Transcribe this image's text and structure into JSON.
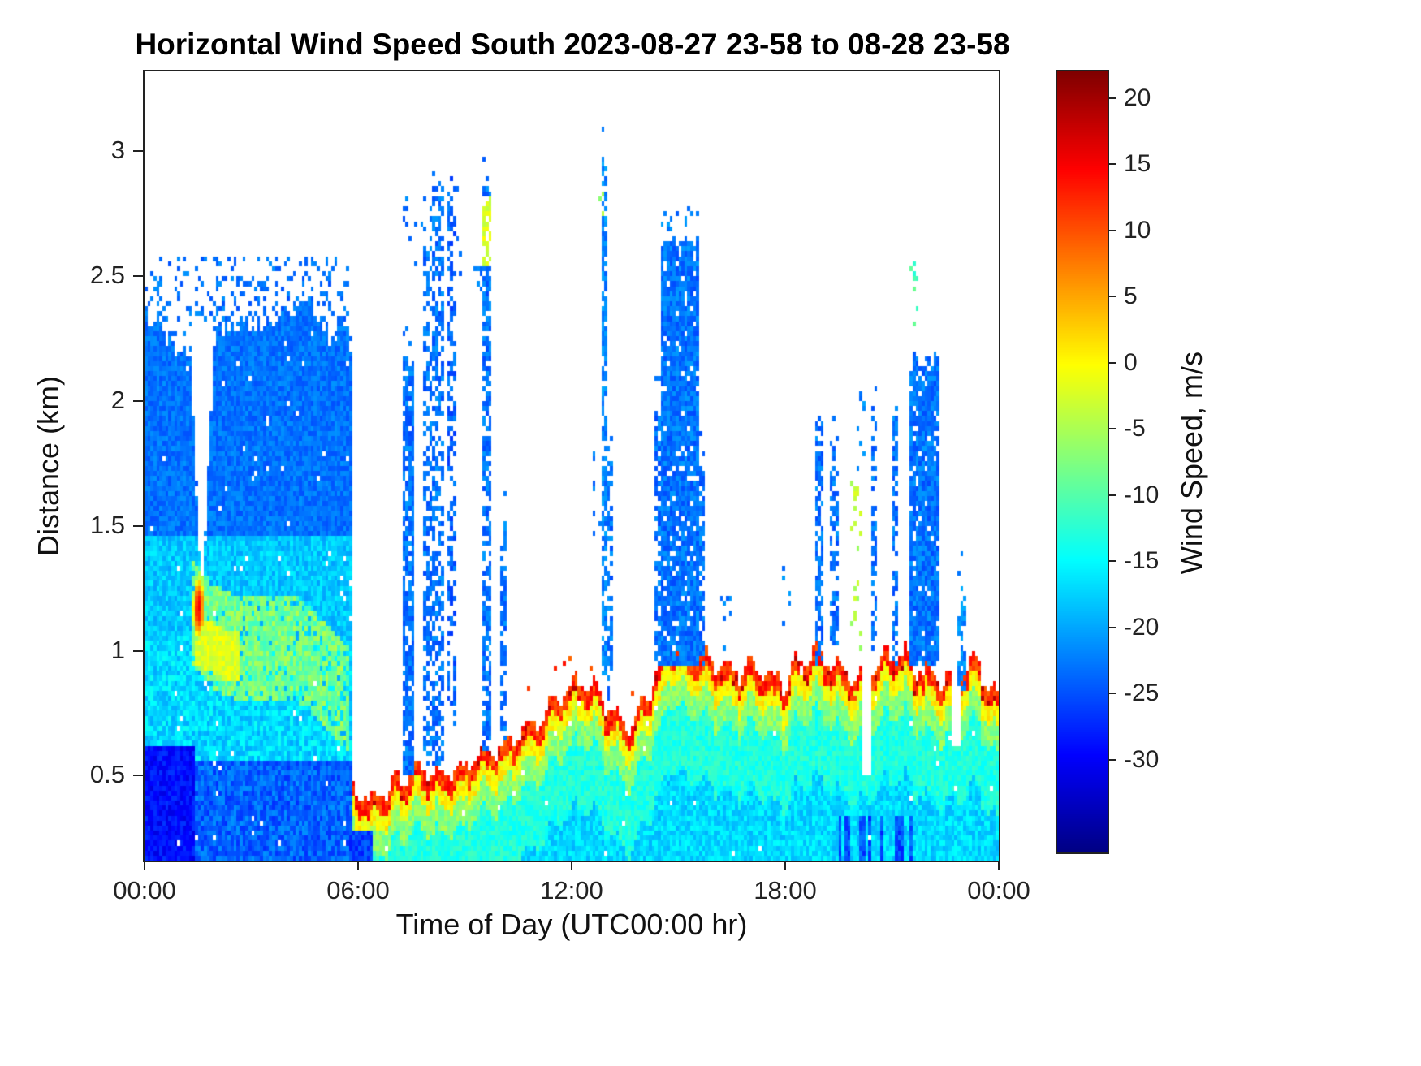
{
  "chart_data": {
    "type": "heatmap",
    "title": "Horizontal Wind Speed South 2023-08-27 23-58 to 08-28 23-58",
    "xlabel": "Time of Day (UTC00:00 hr)",
    "ylabel": "Distance (km)",
    "colorbar_label": "Wind Speed, m/s",
    "x_range_hours": [
      0,
      24
    ],
    "y_range_km": [
      0.16,
      3.32
    ],
    "value_range": [
      -37,
      22
    ],
    "grid_on": false,
    "legend": "colorbar-right",
    "x_ticks": [
      {
        "t": 0,
        "label": "00:00"
      },
      {
        "t": 6,
        "label": "06:00"
      },
      {
        "t": 12,
        "label": "12:00"
      },
      {
        "t": 18,
        "label": "18:00"
      },
      {
        "t": 24,
        "label": "00:00"
      }
    ],
    "y_ticks": [
      {
        "v": 0.5,
        "label": "0.5"
      },
      {
        "v": 1,
        "label": "1"
      },
      {
        "v": 1.5,
        "label": "1.5"
      },
      {
        "v": 2,
        "label": "2"
      },
      {
        "v": 2.5,
        "label": "2.5"
      },
      {
        "v": 3,
        "label": "3"
      }
    ],
    "colorbar_ticks": [
      {
        "v": 20,
        "label": "20"
      },
      {
        "v": 15,
        "label": "15"
      },
      {
        "v": 10,
        "label": "10"
      },
      {
        "v": 5,
        "label": "5"
      },
      {
        "v": 0,
        "label": "0"
      },
      {
        "v": -5,
        "label": "-5"
      },
      {
        "v": -10,
        "label": "-10"
      },
      {
        "v": -15,
        "label": "-15"
      },
      {
        "v": -20,
        "label": "-20"
      },
      {
        "v": -25,
        "label": "-25"
      },
      {
        "v": -30,
        "label": "-30"
      }
    ],
    "colormap": "jet",
    "colormap_stops": [
      [
        0,
        0,
        0,
        131
      ],
      [
        0.125,
        0,
        0,
        255
      ],
      [
        0.375,
        0,
        255,
        255
      ],
      [
        0.625,
        255,
        255,
        0
      ],
      [
        0.875,
        255,
        0,
        0
      ],
      [
        1,
        128,
        0,
        0
      ]
    ],
    "grid": {
      "nx": 288,
      "ny": 158,
      "seed": 42
    },
    "features": {
      "mass": {
        "t": [
          0,
          5.85
        ],
        "base": 0.16,
        "top_pts": [
          [
            0,
            2.38
          ],
          [
            0.4,
            2.3
          ],
          [
            0.9,
            2.22
          ],
          [
            1.3,
            2.2
          ],
          [
            1.7,
            2.28
          ],
          [
            2.1,
            2.3
          ],
          [
            2.5,
            2.28
          ],
          [
            2.9,
            2.32
          ],
          [
            3.3,
            2.3
          ],
          [
            3.7,
            2.36
          ],
          [
            4.1,
            2.32
          ],
          [
            4.5,
            2.4
          ],
          [
            4.9,
            2.34
          ],
          [
            5.3,
            2.28
          ],
          [
            5.6,
            2.3
          ],
          [
            5.85,
            2.2
          ]
        ],
        "top_noise": 0.1,
        "layers": [
          {
            "y_max": 0.55,
            "v": -24,
            "jit": 6
          },
          {
            "y_max": 1.05,
            "v": -17,
            "jit": 6
          },
          {
            "y_max": 1.45,
            "v": -18,
            "jit": 5
          },
          {
            "y_max": 4.0,
            "v": -23,
            "jit": 4
          }
        ],
        "dark_bl": {
          "t": [
            0,
            1.35
          ],
          "y_max": 0.6,
          "v": -29,
          "jit": 5
        },
        "tongue": {
          "t": [
            1.35,
            5.7
          ],
          "c_pts": [
            [
              1.35,
              1.15
            ],
            [
              2.0,
              1.05
            ],
            [
              2.7,
              1.0
            ],
            [
              3.5,
              1.02
            ],
            [
              4.3,
              1.0
            ],
            [
              5.0,
              0.92
            ],
            [
              5.7,
              0.8
            ]
          ],
          "halfw": 0.2,
          "v": -8,
          "jit": 7
        },
        "tongue_core": {
          "t": [
            1.45,
            2.6
          ],
          "c_pts": [
            [
              1.45,
              1.05
            ],
            [
              2.0,
              1.0
            ],
            [
              2.6,
              0.97
            ]
          ],
          "halfw": 0.09,
          "v": -2,
          "jit": 4
        }
      },
      "hole": {
        "t_center": 1.62,
        "y_base": 1.3,
        "halfw_base": 0.05,
        "halfw_slope": 0.3
      },
      "warm_spot": {
        "t": 1.52,
        "y": 1.17,
        "rt": 0.17,
        "ry": 0.13,
        "v_center": 15,
        "v_edge": -6
      },
      "gap": {
        "t": [
          5.85,
          6.45
        ],
        "y_above": 0.46
      },
      "surface": {
        "t": [
          5.85,
          24.05
        ],
        "base": 0.16,
        "top_pts": [
          [
            5.85,
            0.46
          ],
          [
            6.3,
            0.4
          ],
          [
            6.8,
            0.45
          ],
          [
            7.4,
            0.5
          ],
          [
            8.0,
            0.52
          ],
          [
            8.6,
            0.5
          ],
          [
            9.2,
            0.56
          ],
          [
            9.8,
            0.6
          ],
          [
            10.4,
            0.66
          ],
          [
            11.0,
            0.72
          ],
          [
            11.6,
            0.8
          ],
          [
            12.1,
            0.88
          ],
          [
            12.6,
            0.86
          ],
          [
            13.1,
            0.76
          ],
          [
            13.5,
            0.7
          ],
          [
            14.0,
            0.78
          ],
          [
            14.5,
            0.95
          ],
          [
            14.9,
            1.04
          ],
          [
            15.4,
            0.98
          ],
          [
            15.9,
            0.96
          ],
          [
            16.4,
            0.92
          ],
          [
            16.9,
            0.94
          ],
          [
            17.4,
            0.9
          ],
          [
            17.9,
            0.88
          ],
          [
            18.4,
            0.94
          ],
          [
            18.9,
            1.0
          ],
          [
            19.4,
            0.94
          ],
          [
            19.9,
            0.9
          ],
          [
            20.4,
            0.92
          ],
          [
            20.9,
            1.0
          ],
          [
            21.4,
            0.97
          ],
          [
            21.9,
            0.92
          ],
          [
            22.4,
            0.88
          ],
          [
            22.9,
            0.9
          ],
          [
            23.3,
            0.97
          ],
          [
            23.7,
            0.88
          ],
          [
            24.05,
            0.78
          ]
        ],
        "wobble_amp": 0.04,
        "wobble_freq": 1.6,
        "jitter": 0.05,
        "cap": {
          "depth": 0.07,
          "v": 12,
          "jit": 7
        },
        "bands": [
          {
            "depth": 0.14,
            "v": 0,
            "jit": 5
          },
          {
            "depth": 0.24,
            "v": -7,
            "jit": 5
          },
          {
            "depth": 0.5,
            "v": -13,
            "jit": 4
          }
        ],
        "deep_v": -17,
        "deep_jit": 5,
        "spray": {
          "t": [
            9.8,
            14.6
          ],
          "p": 0.12,
          "dy": [
            0.02,
            0.14
          ],
          "v": 11,
          "jit": 6
        },
        "dark_cols": {
          "t": [
            19.4,
            22.0
          ],
          "y_max": 0.34,
          "p": 0.3,
          "v": -25,
          "jit": 6
        }
      },
      "dark_patch": {
        "t": [
          5.8,
          6.4
        ],
        "y_max": 0.26,
        "v": -26,
        "jit": 5
      },
      "slots": [
        {
          "t": [
            20.2,
            20.4
          ],
          "y_above": 0.5
        },
        {
          "t": [
            22.7,
            22.85
          ],
          "y_above": 0.62
        }
      ],
      "columns": [
        {
          "t": [
            7.25,
            7.55
          ],
          "y": [
            0.5,
            2.15
          ],
          "v": -23,
          "broken": 0.15
        },
        {
          "t": [
            7.9,
            8.05
          ],
          "y": [
            0.55,
            2.65
          ],
          "v": -23,
          "broken": 0.45
        },
        {
          "t": [
            8.15,
            8.35
          ],
          "y": [
            0.55,
            2.85
          ],
          "v": -23,
          "broken": 0.5
        },
        {
          "t": [
            8.55,
            8.72
          ],
          "y": [
            0.7,
            2.88
          ],
          "v": -24,
          "broken": 0.55
        },
        {
          "t": [
            9.5,
            9.68
          ],
          "y": [
            0.6,
            2.85
          ],
          "v": -23,
          "broken": 0.35,
          "tip_y": [
            2.55,
            2.82
          ],
          "tip_v": -2
        },
        {
          "t": [
            10.05,
            10.15
          ],
          "y": [
            0.65,
            1.5
          ],
          "v": -23,
          "broken": 0.4
        },
        {
          "t": [
            12.85,
            12.97
          ],
          "y": [
            0.9,
            2.97
          ],
          "v": -22,
          "broken": 0.3
        },
        {
          "t": [
            13.05,
            13.12
          ],
          "y": [
            0.8,
            1.8
          ],
          "v": -23,
          "broken": 0.45
        },
        {
          "t": [
            14.35,
            14.5
          ],
          "y": [
            0.95,
            1.95
          ],
          "v": -23,
          "broken": 0.3
        },
        {
          "t": [
            14.55,
            15.5
          ],
          "y": [
            0.95,
            2.6
          ],
          "v": -23,
          "broken": 0.08
        },
        {
          "t": [
            15.55,
            15.68
          ],
          "y": [
            0.95,
            1.75
          ],
          "v": -23,
          "broken": 0.35
        },
        {
          "t": [
            18.85,
            19.0
          ],
          "y": [
            0.95,
            1.9
          ],
          "v": -23,
          "broken": 0.4
        },
        {
          "t": [
            19.3,
            19.42
          ],
          "y": [
            1.0,
            1.78
          ],
          "v": -23,
          "broken": 0.45
        },
        {
          "t": [
            20.45,
            20.55
          ],
          "y": [
            1.0,
            1.95
          ],
          "v": -23,
          "broken": 0.5
        },
        {
          "t": [
            21.0,
            21.12
          ],
          "y": [
            0.95,
            2.0
          ],
          "v": -23,
          "broken": 0.4
        },
        {
          "t": [
            21.5,
            22.3
          ],
          "y": [
            0.95,
            2.15
          ],
          "v": -23,
          "broken": 0.08
        },
        {
          "t": [
            22.9,
            23.02
          ],
          "y": [
            0.85,
            1.2
          ],
          "v": -22,
          "broken": 0.4
        }
      ],
      "dots": [
        {
          "t": [
            0.15,
            5.7
          ],
          "y": [
            2.3,
            2.58
          ],
          "n": 150,
          "v": -23,
          "jit": 4
        },
        {
          "t": [
            7.3,
            8.9
          ],
          "y": [
            2.5,
            2.85
          ],
          "n": 30,
          "v": -23,
          "jit": 4
        },
        {
          "t": [
            9.3,
            9.45
          ],
          "y": [
            2.45,
            2.6
          ],
          "n": 8,
          "v": -23,
          "jit": 4
        },
        {
          "t": [
            12.6,
            12.8
          ],
          "y": [
            1.45,
            1.85
          ],
          "n": 8,
          "v": -23,
          "jit": 4
        },
        {
          "t": [
            12.78,
            12.9
          ],
          "y": [
            2.75,
            2.85
          ],
          "n": 5,
          "v": -6,
          "jit": 4
        },
        {
          "t": [
            16.2,
            16.5
          ],
          "y": [
            1.0,
            1.25
          ],
          "n": 8,
          "v": -22,
          "jit": 4
        },
        {
          "t": [
            17.9,
            18.15
          ],
          "y": [
            1.0,
            1.35
          ],
          "n": 7,
          "v": -22,
          "jit": 4
        },
        {
          "t": [
            19.9,
            20.15
          ],
          "y": [
            0.6,
            1.7
          ],
          "n": 26,
          "v": -4,
          "jit": 5
        },
        {
          "t": [
            20.05,
            20.2
          ],
          "y": [
            1.7,
            2.05
          ],
          "n": 8,
          "v": -22,
          "jit": 4
        },
        {
          "t": [
            21.55,
            21.72
          ],
          "y": [
            2.3,
            2.55
          ],
          "n": 12,
          "v": -11,
          "jit": 5
        },
        {
          "t": [
            14.5,
            15.45
          ],
          "y": [
            2.6,
            2.78
          ],
          "n": 14,
          "v": -22,
          "jit": 4
        },
        {
          "t": [
            0.15,
            0.5
          ],
          "y": [
            2.4,
            2.55
          ],
          "n": 8,
          "v": -23,
          "jit": 4
        }
      ]
    }
  }
}
